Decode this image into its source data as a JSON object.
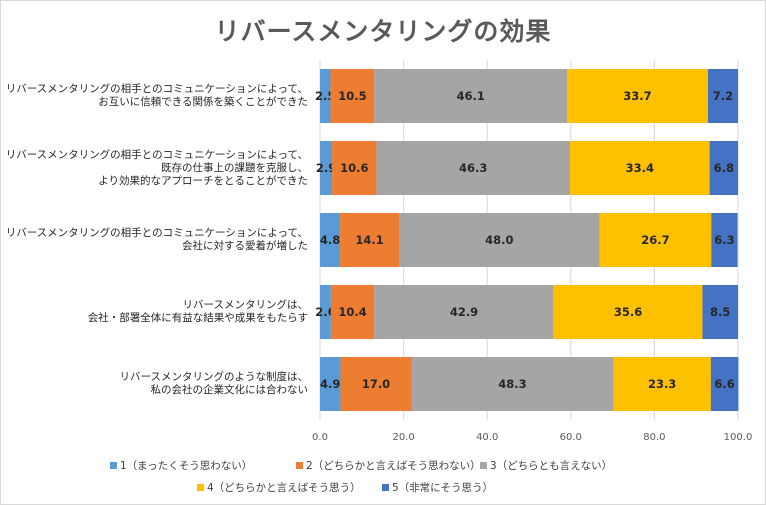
{
  "chart_data": {
    "type": "bar",
    "orientation": "horizontal",
    "stacked": true,
    "title": "リバースメンタリングの効果",
    "categories": [
      [
        "リバースメンタリングの相手とのコミュニケーションによって、",
        "お互いに信頼できる関係を築くことができた"
      ],
      [
        "リバースメンタリングの相手とのコミュニケーションによって、",
        "既存の仕事上の課題を克服し、",
        "より効果的なアプローチをとることができた"
      ],
      [
        "リバースメンタリングの相手とのコミュニケーションによって、",
        "会社に対する愛着が増した"
      ],
      [
        "リバースメンタリングは、",
        "会社・部署全体に有益な結果や成果をもたらす"
      ],
      [
        "リバースメンタリングのような制度は、",
        "私の会社の企業文化には合わない"
      ]
    ],
    "series": [
      {
        "name": "1（まったくそう思わない）",
        "color": "#5b9bd5",
        "values": [
          2.5,
          2.9,
          4.8,
          2.6,
          4.9
        ]
      },
      {
        "name": "2（どちらかと言えばそう思わない）",
        "color": "#ed7d31",
        "values": [
          10.5,
          10.6,
          14.1,
          10.4,
          17.0
        ]
      },
      {
        "name": "3（どちらとも言えない）",
        "color": "#a5a5a5",
        "values": [
          46.1,
          46.3,
          48.0,
          42.9,
          48.3
        ]
      },
      {
        "name": "4（どちらかと言えばそう思う）",
        "color": "#ffc000",
        "values": [
          33.7,
          33.4,
          26.7,
          35.6,
          23.3
        ]
      },
      {
        "name": "5（非常にそう思う）",
        "color": "#4472c4",
        "values": [
          7.2,
          6.8,
          6.3,
          8.5,
          6.6
        ]
      }
    ],
    "xlim": [
      0,
      100
    ],
    "x_ticks": [
      "0.0",
      "20.0",
      "40.0",
      "60.0",
      "80.0",
      "100.0"
    ],
    "grid": true,
    "legend_position": "bottom"
  }
}
